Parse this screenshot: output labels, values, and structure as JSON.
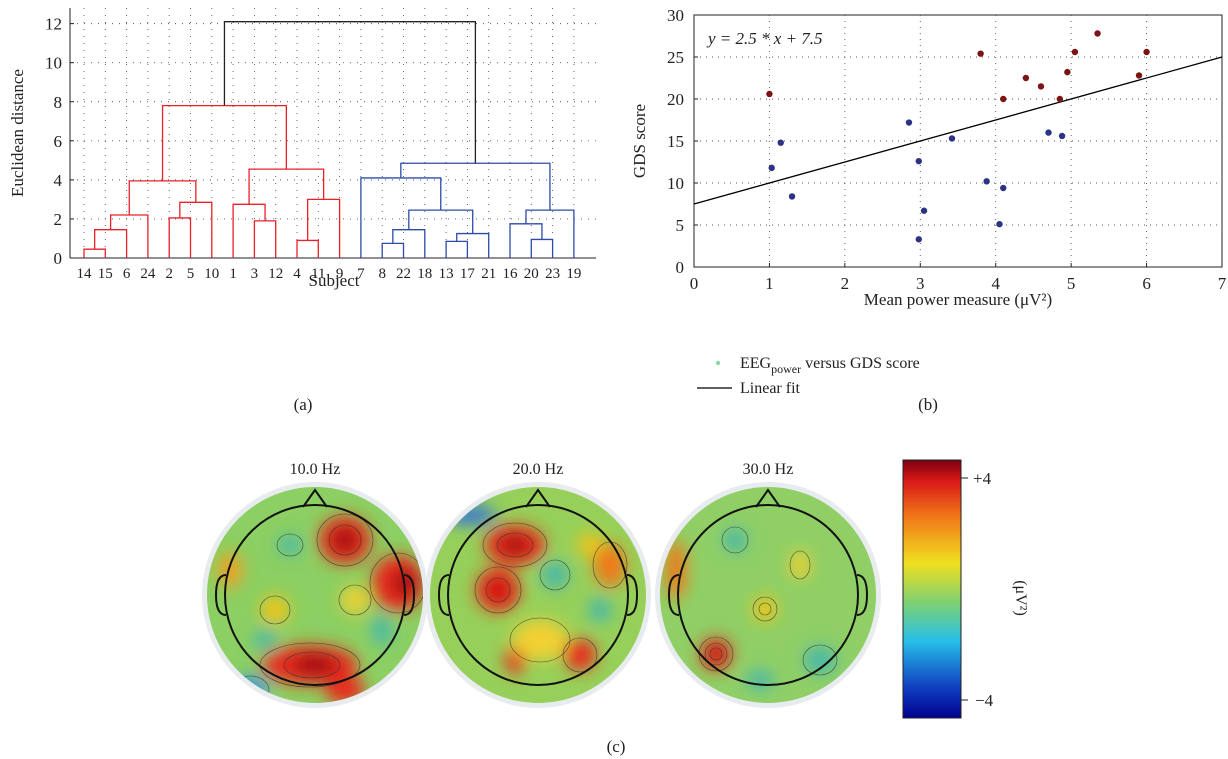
{
  "panels": {
    "a": {
      "label": "(a)"
    },
    "b": {
      "label": "(b)"
    },
    "c": {
      "label": "(c)"
    }
  },
  "chart_data": [
    {
      "id": "a",
      "type": "dendrogram",
      "ylabel": "Euclidean distance",
      "xlabel": "Subject",
      "ylim": [
        0,
        12.8
      ],
      "yticks": [
        0,
        2,
        4,
        6,
        8,
        10,
        12
      ],
      "grid": true,
      "leaves": [
        "14",
        "15",
        "6",
        "24",
        "2",
        "5",
        "10",
        "1",
        "3",
        "12",
        "4",
        "11",
        "9",
        "7",
        "8",
        "22",
        "18",
        "13",
        "17",
        "21",
        "16",
        "20",
        "23",
        "19"
      ],
      "colors": {
        "red": "#e8212b",
        "blue": "#2b4ba8",
        "root": "#222222"
      },
      "merges": [
        {
          "left": "L14",
          "right": "L15",
          "height": 0.45,
          "color": "red"
        },
        {
          "left": "M0",
          "right": "L6",
          "height": 1.45,
          "color": "red"
        },
        {
          "left": "M1",
          "right": "L24",
          "height": 2.2,
          "color": "red"
        },
        {
          "left": "L2",
          "right": "L5",
          "height": 2.05,
          "color": "red"
        },
        {
          "left": "M3",
          "right": "L10",
          "height": 2.85,
          "color": "red"
        },
        {
          "left": "M2",
          "right": "M4",
          "height": 3.95,
          "color": "red"
        },
        {
          "left": "L3",
          "right": "L12",
          "height": 1.9,
          "color": "red"
        },
        {
          "left": "L1",
          "right": "M6",
          "height": 2.75,
          "color": "red"
        },
        {
          "left": "L4",
          "right": "L11",
          "height": 0.9,
          "color": "red"
        },
        {
          "left": "M8",
          "right": "L9",
          "height": 3.0,
          "color": "red"
        },
        {
          "left": "M7",
          "right": "M9",
          "height": 4.55,
          "color": "red"
        },
        {
          "left": "M5",
          "right": "M10",
          "height": 7.8,
          "color": "red"
        },
        {
          "left": "L8",
          "right": "L22",
          "height": 0.75,
          "color": "blue"
        },
        {
          "left": "M12",
          "right": "L18",
          "height": 1.45,
          "color": "blue"
        },
        {
          "left": "L13",
          "right": "L17",
          "height": 0.85,
          "color": "blue"
        },
        {
          "left": "M14",
          "right": "L21",
          "height": 1.25,
          "color": "blue"
        },
        {
          "left": "M13",
          "right": "M15",
          "height": 2.45,
          "color": "blue"
        },
        {
          "left": "L7",
          "right": "M16",
          "height": 4.1,
          "color": "blue"
        },
        {
          "left": "L20",
          "right": "L23",
          "height": 0.95,
          "color": "blue"
        },
        {
          "left": "L16",
          "right": "M18",
          "height": 1.75,
          "color": "blue"
        },
        {
          "left": "M19",
          "right": "L19",
          "height": 2.45,
          "color": "blue"
        },
        {
          "left": "M17",
          "right": "M20",
          "height": 4.85,
          "color": "blue"
        },
        {
          "left": "M11",
          "right": "M21",
          "height": 12.1,
          "color": "root"
        }
      ]
    },
    {
      "id": "b",
      "type": "scatter",
      "xlabel": "Mean power measure (μV²)",
      "ylabel": "GDS score",
      "xlim": [
        0,
        7
      ],
      "ylim": [
        0,
        30
      ],
      "xticks": [
        0,
        1,
        2,
        3,
        4,
        5,
        6,
        7
      ],
      "yticks": [
        0,
        5,
        10,
        15,
        20,
        25,
        30
      ],
      "grid": true,
      "annotation": "y = 2.5 * x + 7.5",
      "fit": {
        "slope": 2.5,
        "intercept": 7.5,
        "color": "#000000"
      },
      "legend": {
        "position": "bottom-left",
        "entries": [
          {
            "label_main": "EEG",
            "label_sub": "power",
            "label_tail": " versus GDS score",
            "marker": "dot",
            "color": "#8fd8a0"
          },
          {
            "label_main": "Linear fit",
            "marker": "line",
            "color": "#000000"
          }
        ]
      },
      "series": [
        {
          "color": "#7b1414",
          "points": [
            [
              1.0,
              20.6
            ],
            [
              3.8,
              25.4
            ],
            [
              4.1,
              20.0
            ],
            [
              4.4,
              22.5
            ],
            [
              4.6,
              21.5
            ],
            [
              4.85,
              20.0
            ],
            [
              4.95,
              23.2
            ],
            [
              5.05,
              25.6
            ],
            [
              5.35,
              27.8
            ],
            [
              5.9,
              22.8
            ],
            [
              6.0,
              25.6
            ]
          ]
        },
        {
          "color": "#2b3484",
          "points": [
            [
              1.03,
              11.8
            ],
            [
              1.15,
              14.8
            ],
            [
              1.3,
              8.4
            ],
            [
              2.85,
              17.2
            ],
            [
              2.98,
              12.6
            ],
            [
              2.98,
              3.3
            ],
            [
              3.05,
              6.7
            ],
            [
              3.42,
              15.3
            ],
            [
              3.88,
              10.2
            ],
            [
              4.05,
              5.1
            ],
            [
              4.1,
              9.4
            ],
            [
              4.7,
              16.0
            ],
            [
              4.88,
              15.6
            ]
          ]
        }
      ]
    },
    {
      "id": "c",
      "type": "heatmap",
      "maps": [
        {
          "title": "10.0 Hz"
        },
        {
          "title": "20.0 Hz"
        },
        {
          "title": "30.0 Hz"
        }
      ],
      "colorbar": {
        "max_label": "+4",
        "min_label": "−4",
        "unit_label": "(μV²)",
        "range": [
          -4,
          4
        ]
      }
    }
  ]
}
